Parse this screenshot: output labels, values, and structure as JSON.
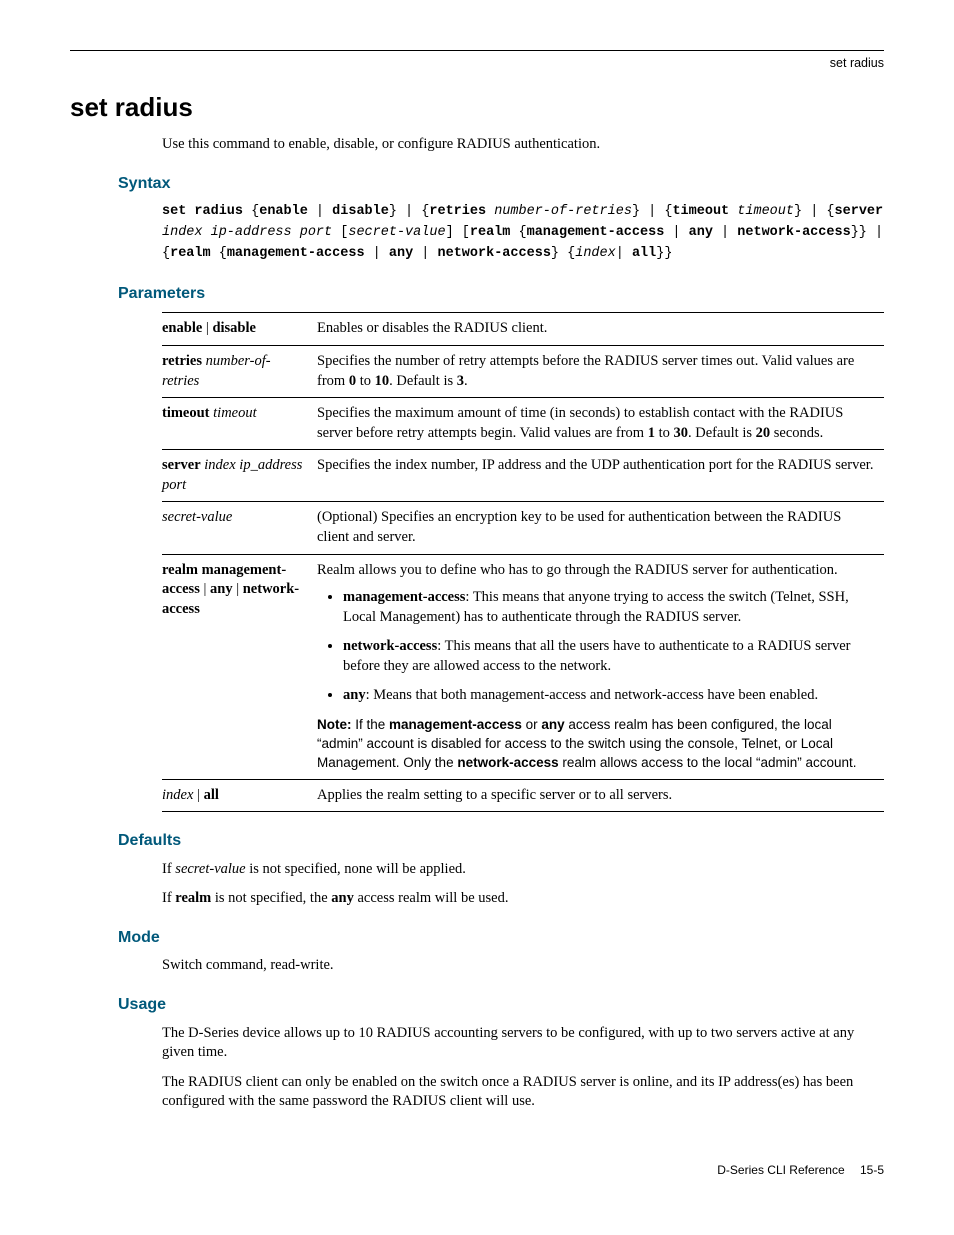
{
  "running_head": "set radius",
  "title": "set radius",
  "intro": "Use this command to enable, disable, or configure RADIUS authentication.",
  "sections": {
    "syntax": "Syntax",
    "parameters": "Parameters",
    "defaults": "Defaults",
    "mode": "Mode",
    "usage": "Usage"
  },
  "syntax_html": "<b>set radius</b> {<b>enable</b> | <b>disable</b>} | {<b>retries</b> <i>number-of-retries</i>} | {<b>timeout</b> <i>timeout</i>} | {<b>server</b> <i>index ip-address port</i> [<i>secret-value</i>] [<b>realm</b> {<b>management-access</b> | <b>any</b> | <b>network-access</b>}} | {<b>realm</b> {<b>management-access</b> | <b>any</b> | <b>network-access</b>} {<i>index</i>| <b>all</b>}}",
  "params": [
    {
      "name_html": "<b>enable</b> | <b>disable</b>",
      "desc_html": "Enables or disables the RADIUS client."
    },
    {
      "name_html": "<b>retries</b> <i>number-of-retries</i>",
      "desc_html": "Specifies the number of retry attempts before the RADIUS server times out. Valid values are from <b>0</b> to <b>10</b>. Default is <b>3</b>."
    },
    {
      "name_html": "<b>timeout</b> <i>timeout</i>",
      "desc_html": "Specifies the maximum amount of time (in seconds) to establish contact with the RADIUS server before retry attempts begin. Valid values are from <b>1</b> to <b>30</b>. Default is <b>20</b> seconds."
    },
    {
      "name_html": "<b>server</b> <i>index ip_address port</i>",
      "desc_html": "Specifies the index number, IP address and the UDP authentication port for the RADIUS server."
    },
    {
      "name_html": "<i>secret-value</i>",
      "desc_html": "(Optional) Specifies an encryption key to be used for authentication between the RADIUS client and server."
    },
    {
      "name_html": "<b>realm management-access</b> | <b>any</b> | <b>network-access</b>",
      "desc_html": "Realm allows you to define who has to go through the RADIUS server for authentication.<ul><li><b>management-access</b>: This means that anyone trying to access the switch (Telnet, SSH, Local Management) has to authenticate through the RADIUS server.</li><li><b>network-access</b>: This means that all the users have to authenticate to a RADIUS server before they are allowed access to the network.</li><li><b>any</b>: Means that both management-access and network-access have been enabled.</li></ul><div class=\"sans note\"><b>Note:</b> If the <b>management-access</b> or <b>any</b> access realm has been configured, the local “admin” account is disabled for access to the switch using the console, Telnet, or Local Management. Only the <b>network-access</b> realm allows access to the local “admin” account.</div>"
    },
    {
      "name_html": "<i>index</i> | <b>all</b>",
      "desc_html": "Applies the realm setting to a specific server or to all servers."
    }
  ],
  "defaults": [
    "If <i>secret-value</i> is not specified, none will be applied.",
    "If <b>realm</b> is not specified, the <b>any</b> access realm will be used."
  ],
  "mode": "Switch command, read-write.",
  "usage": [
    "The D-Series device allows up to 10 RADIUS accounting servers to be configured, with up to two servers active at any given time.",
    "The RADIUS client can only be enabled on the switch once a RADIUS server is online, and its IP address(es) has been configured with the same password the RADIUS client will use."
  ],
  "footer": "D-Series CLI Reference  15-5",
  "colors": {
    "heading": "#00587a",
    "text": "#000000",
    "bg": "#ffffff"
  }
}
